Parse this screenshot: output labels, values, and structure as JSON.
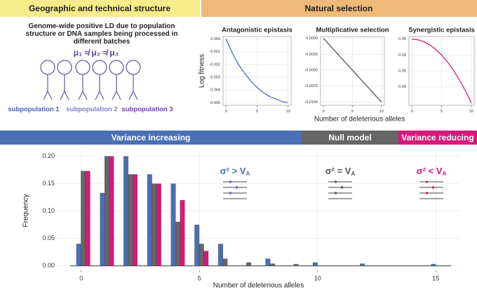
{
  "header": {
    "left": "Geographic and technical structure",
    "right": "Natural selection"
  },
  "diagram": {
    "caption": "Genome-wide positive LD due to population structure or DNA samples being processed in different batches",
    "formula": "μ₁ ≉ μ₂ ≉ μ₃",
    "subpopulations": [
      "subpopulation 1",
      "subpopulation 2",
      "subpopulation 3"
    ]
  },
  "chart_data": [
    {
      "type": "line",
      "title": "Antagonistic epistasis",
      "y_label": "Log fitness",
      "color": "#4a6fc0",
      "grid": true,
      "x": [
        0,
        1,
        2,
        3,
        4,
        5,
        6,
        7,
        8,
        9,
        10
      ],
      "values": [
        0,
        -0.0011,
        -0.002,
        -0.0027,
        -0.0033,
        -0.0038,
        -0.0042,
        -0.0045,
        -0.0047,
        -0.0049,
        -0.005
      ],
      "xlim": [
        -0.5,
        10.5
      ],
      "xticks": [
        0,
        5,
        10
      ],
      "ylim": [
        -0.0052,
        0.0002
      ],
      "yticks": [
        {
          "value": 0,
          "label": "0.000"
        },
        -0.001,
        -0.002,
        -0.003,
        -0.004,
        -0.005
      ]
    },
    {
      "type": "line",
      "title": "Multiplicative selection",
      "x_label": "Number of deleterious alleles",
      "color": "#555555",
      "grid": true,
      "x": [
        0,
        1,
        2,
        3,
        4,
        5,
        6,
        7,
        8,
        9,
        10
      ],
      "values": [
        0,
        -0.001,
        -0.002,
        -0.003,
        -0.004,
        -0.005,
        -0.006,
        -0.007,
        -0.008,
        -0.009,
        -0.01
      ],
      "xlim": [
        -0.5,
        10.5
      ],
      "xticks": [
        0,
        5,
        10
      ],
      "ylim": [
        -0.0105,
        0.0003
      ],
      "yticks": [
        {
          "value": 0,
          "label": "0.0000"
        },
        -0.0025,
        {
          "value": -0.005,
          "label": "-0.0050"
        },
        -0.0075,
        {
          "value": -0.01,
          "label": "-0.0100"
        }
      ]
    },
    {
      "type": "line",
      "title": "Synergistic epistasis",
      "color": "#d6197a",
      "grid": true,
      "x": [
        0,
        1,
        2,
        3,
        4,
        5,
        6,
        7,
        8,
        9,
        10
      ],
      "values": [
        0,
        -0.0012,
        -0.0048,
        -0.0108,
        -0.0192,
        -0.03,
        -0.043,
        -0.059,
        -0.077,
        -0.097,
        -0.12
      ],
      "xlim": [
        -0.5,
        10.5
      ],
      "xticks": [
        0,
        5,
        10
      ],
      "ylim": [
        -0.125,
        0.005
      ],
      "yticks": [
        {
          "value": 0,
          "label": "0.00"
        },
        -0.03,
        -0.06,
        -0.09
      ]
    },
    {
      "type": "bar",
      "x_label": "Number of deleterious alleles",
      "y_label": "Frequency",
      "grid": true,
      "x": [
        0,
        1,
        2,
        3,
        4,
        5,
        6,
        7,
        8,
        9,
        10,
        11,
        12,
        13,
        14,
        15
      ],
      "series": [
        {
          "name": "Variance increasing",
          "color": "#4a6fb5",
          "values": [
            0.04,
            0.133,
            0.2,
            0.167,
            0.15,
            0.075,
            0.04,
            0,
            0.013,
            0,
            0.006,
            0,
            0.004,
            0,
            0,
            0.003
          ]
        },
        {
          "name": "Null model",
          "color": "#666666",
          "values": [
            0.173,
            0.2,
            0.167,
            0.15,
            0.08,
            0.04,
            0.013,
            0.006,
            0.004,
            0.003,
            0,
            0,
            0,
            0,
            0,
            0
          ]
        },
        {
          "name": "Variance reducing",
          "color": "#d6197a",
          "values": [
            0.173,
            0.2,
            0.167,
            0.15,
            0.12,
            0.027,
            0,
            0,
            0,
            0,
            0,
            0,
            0,
            0,
            0,
            0
          ]
        }
      ],
      "annotations": [
        {
          "text": "σ² > V",
          "sub": "A",
          "color": "#4a6fb5"
        },
        {
          "text": "σ² = V",
          "sub": "A",
          "color": "#555555"
        },
        {
          "text": "σ² < V",
          "sub": "A",
          "color": "#d6197a"
        }
      ],
      "xlim": [
        -1,
        16
      ],
      "xticks": [
        0,
        5,
        10,
        15
      ],
      "ylim": [
        -0.008,
        0.21
      ],
      "yticks": [
        {
          "value": 0,
          "label": "0.00"
        },
        0.05,
        {
          "value": 0.1,
          "label": "0.10"
        },
        0.15,
        {
          "value": 0.2,
          "label": "0.20"
        }
      ]
    }
  ]
}
